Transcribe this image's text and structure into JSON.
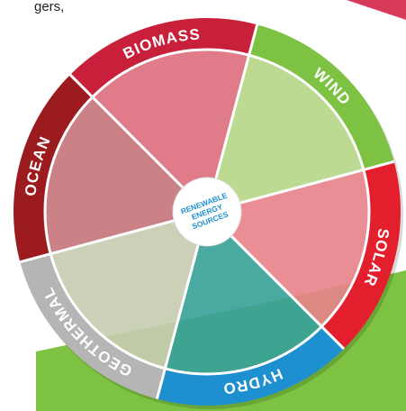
{
  "top_text": "gers,",
  "segments": [
    {
      "label": "BIOMASS",
      "color": "#c8203a",
      "fill": "#e0707f"
    },
    {
      "label": "WIND",
      "color": "#7dc242",
      "fill": "#b8d98a"
    },
    {
      "label": "SOLAR",
      "color": "#e31e2d",
      "fill": "#e9858c"
    },
    {
      "label": "HYDRO",
      "color": "#1e90d0",
      "fill": "#3aa39a"
    },
    {
      "label": "GEOTHERMAL",
      "color": "#b5b5b5",
      "fill": "#c9cfb2"
    },
    {
      "label": "OCEAN",
      "color": "#9b1b1e",
      "fill": "#c9787c"
    }
  ],
  "center": {
    "lines": [
      "RENEWABLE",
      "ENERGY",
      "SOURCES"
    ]
  }
}
